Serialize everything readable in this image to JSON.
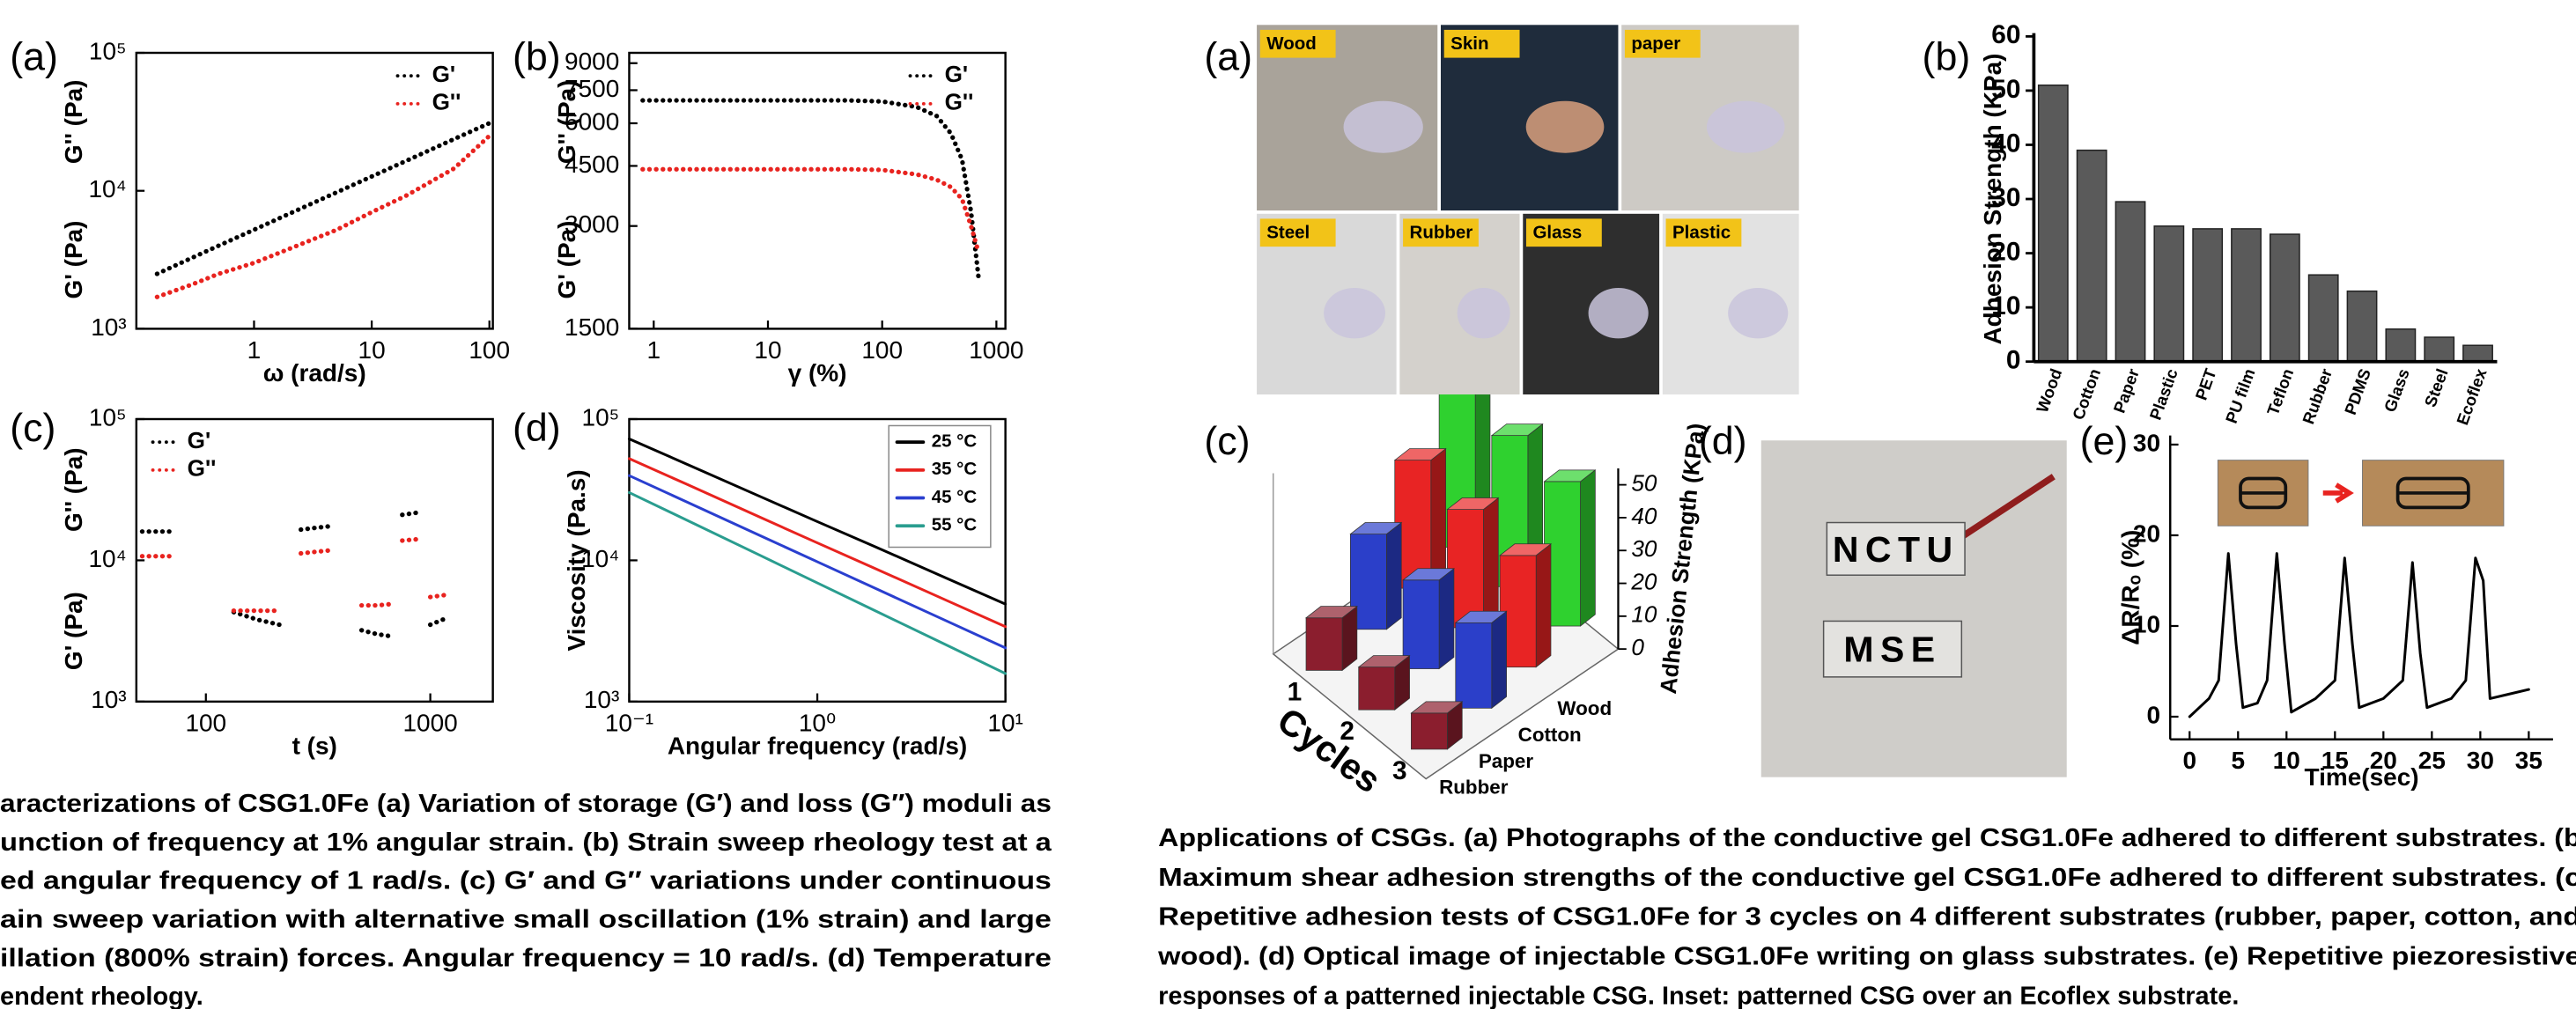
{
  "chart_data": [
    {
      "panel": "(a)",
      "type": "line",
      "xscale": "log",
      "yscale": "log",
      "frame": true,
      "legend": "upper right",
      "xlabel": "ω (rad/s)",
      "ylabel": [
        {
          "text": "G'' (Pa)",
          "color": "#e8231f"
        },
        {
          "text": "G' (Pa)",
          "color": "#000000"
        }
      ],
      "xlim": [
        0.1,
        107
      ],
      "ylim": [
        1000,
        100000
      ],
      "xticks": [
        1,
        10,
        100
      ],
      "yticks": [
        {
          "value": 1000,
          "label": "10³"
        },
        {
          "value": 10000,
          "label": "10⁴"
        },
        {
          "value": 100000,
          "label": "10⁵"
        }
      ],
      "x": [
        0.15,
        0.3,
        0.5,
        1,
        2,
        5,
        10,
        20,
        50,
        100
      ],
      "series": [
        {
          "name": "G'",
          "color": "#000000",
          "style": "dotted",
          "values": [
            2500,
            3280,
            4000,
            5220,
            6830,
            9720,
            12700,
            16600,
            23700,
            30900
          ]
        },
        {
          "name": "G''",
          "color": "#e8231f",
          "style": "dotted",
          "values": [
            1700,
            2100,
            2500,
            3000,
            3800,
            5200,
            7000,
            9300,
            14500,
            25000
          ]
        }
      ]
    },
    {
      "panel": "(b)",
      "type": "line",
      "xscale": "log",
      "yscale": "log",
      "frame": true,
      "legend": "upper right",
      "xlabel": "γ (%)",
      "ylabel": [
        {
          "text": "G'' (Pa)",
          "color": "#e8231f"
        },
        {
          "text": "G' (Pa)",
          "color": "#000000"
        }
      ],
      "xlim": [
        0.61,
        1200
      ],
      "ylim": [
        1500,
        9650
      ],
      "xticks": [
        1,
        10,
        100,
        1000
      ],
      "yticks": [
        1500,
        3000,
        4500,
        6000,
        7500,
        9000
      ],
      "x": [
        0.8,
        2,
        5,
        10,
        20,
        50,
        100,
        200,
        300,
        400,
        500,
        600,
        700
      ],
      "series": [
        {
          "name": "G'",
          "color": "#000000",
          "style": "dotted",
          "values": [
            7000,
            7000,
            7000,
            7000,
            7000,
            7000,
            6950,
            6700,
            6300,
            5600,
            4700,
            3300,
            2100
          ]
        },
        {
          "name": "G''",
          "color": "#e8231f",
          "style": "dotted",
          "values": [
            4400,
            4400,
            4400,
            4400,
            4400,
            4400,
            4380,
            4250,
            4100,
            3900,
            3600,
            3000,
            2500
          ]
        }
      ]
    },
    {
      "panel": "(c)",
      "type": "line",
      "xscale": "log",
      "yscale": "log",
      "frame": true,
      "legend": "upper left",
      "xlabel": "t (s)",
      "ylabel": [
        {
          "text": "G'' (Pa)",
          "color": "#e8231f"
        },
        {
          "text": "G' (Pa)",
          "color": "#000000"
        }
      ],
      "xlim": [
        49,
        1900
      ],
      "ylim": [
        1000,
        100000
      ],
      "xticks": [
        100,
        1000
      ],
      "yticks": [
        {
          "value": 1000,
          "label": "10³"
        },
        {
          "value": 10000,
          "label": "10⁴"
        },
        {
          "value": 100000,
          "label": "10⁵"
        }
      ],
      "x": [
        52,
        61,
        70,
        100,
        133,
        170,
        213,
        240,
        265,
        310,
        365,
        420,
        494,
        580,
        670,
        700,
        750,
        830,
        920,
        960,
        1000,
        1090,
        1180
      ],
      "series": [
        {
          "name": "G'",
          "color": "#000000",
          "style": "dotted",
          "values": [
            16000,
            16000,
            16000,
            null,
            4300,
            3800,
            3500,
            null,
            16500,
            17000,
            17500,
            null,
            3200,
            3000,
            2900,
            null,
            21000,
            21500,
            22000,
            null,
            3500,
            3700,
            3900
          ]
        },
        {
          "name": "G''",
          "color": "#e8231f",
          "style": "dotted",
          "values": [
            10700,
            10700,
            10700,
            null,
            4400,
            4400,
            4400,
            null,
            11200,
            11500,
            11800,
            null,
            4800,
            4800,
            4900,
            null,
            13800,
            14000,
            14200,
            null,
            5500,
            5600,
            5700
          ]
        }
      ]
    },
    {
      "panel": "(d)",
      "type": "line",
      "xscale": "log",
      "yscale": "log",
      "frame": true,
      "legend": "upper right",
      "legend_frame": true,
      "xlabel": "Angular frequency (rad/s)",
      "ylabel": "Viscosity (Pa.s)",
      "xlim": [
        0.1,
        10
      ],
      "ylim": [
        1000,
        100000
      ],
      "xticks": [
        {
          "value": 0.1,
          "label": "10⁻¹"
        },
        {
          "value": 1,
          "label": "10⁰"
        },
        {
          "value": 10,
          "label": "10¹"
        }
      ],
      "yticks": [
        {
          "value": 1000,
          "label": "10³"
        },
        {
          "value": 10000,
          "label": "10⁴"
        },
        {
          "value": 100000,
          "label": "10⁵"
        }
      ],
      "x": [
        0.1,
        0.2,
        0.5,
        1,
        2,
        5,
        10
      ],
      "series": [
        {
          "name": "25 °C",
          "color": "#000000",
          "style": "solid",
          "values": [
            72400,
            48300,
            28200,
            18800,
            12600,
            7350,
            4900
          ]
        },
        {
          "name": "35 °C",
          "color": "#e8231f",
          "style": "solid",
          "values": [
            52500,
            34800,
            20100,
            13300,
            8830,
            5120,
            3390
          ]
        },
        {
          "name": "45 °C",
          "color": "#2a3fcf",
          "style": "solid",
          "values": [
            39800,
            26100,
            14900,
            9770,
            6400,
            3660,
            2400
          ]
        },
        {
          "name": "55 °C",
          "color": "#2a9d8f",
          "style": "solid",
          "values": [
            30200,
            19400,
            10800,
            6920,
            4440,
            2470,
            1580
          ]
        }
      ]
    },
    {
      "panel": "(b)",
      "type": "bar",
      "frame": false,
      "ylabel": "Adhesion Strength (KPa)",
      "categories": [
        "Wood",
        "Cotton",
        "Paper",
        "Plastic",
        "PET",
        "PU film",
        "Teflon",
        "Rubber",
        "PDMS",
        "Glass",
        "Steel",
        "Ecoflex"
      ],
      "values": [
        51,
        39,
        29.5,
        25,
        24.5,
        24.5,
        23.5,
        16,
        13,
        6,
        4.5,
        3
      ],
      "color": "#5a5a5a",
      "ylim": [
        0,
        60
      ],
      "yticks": [
        0,
        10,
        20,
        30,
        40,
        50,
        60
      ]
    },
    {
      "panel": "(c)",
      "type": "bar3d",
      "xlabel": "Cycles",
      "ylabel": "Adhesion Strength (KPa)",
      "categories": [
        "1",
        "2",
        "3"
      ],
      "ylim": [
        0,
        55
      ],
      "yticks": [
        0,
        10,
        20,
        30,
        40,
        50
      ],
      "series": [
        {
          "name": "Rubber",
          "color": "#8b1e2e",
          "values": [
            16,
            13,
            11
          ]
        },
        {
          "name": "Paper",
          "color": "#2b3fc9",
          "values": [
            29,
            27,
            26
          ]
        },
        {
          "name": "Cotton",
          "color": "#e82424",
          "values": [
            39,
            36,
            34
          ]
        },
        {
          "name": "Wood",
          "color": "#2fd12f",
          "values": [
            48,
            46,
            44
          ]
        }
      ]
    },
    {
      "panel": "(e)",
      "type": "line",
      "xscale": "linear",
      "yscale": "linear",
      "frame": false,
      "xlabel": "Time(sec)",
      "ylabel": "ΔR/Rₒ (%)",
      "xlim": [
        -2,
        37.5
      ],
      "ylim": [
        -2.5,
        31
      ],
      "xticks": [
        0,
        5,
        10,
        15,
        20,
        25,
        30,
        35
      ],
      "yticks": [
        0,
        10,
        20,
        30
      ],
      "x": [
        0,
        1,
        2,
        3,
        4,
        4.8,
        5.5,
        7,
        8,
        9,
        9.8,
        10.5,
        13,
        15,
        16,
        16.8,
        17.5,
        20,
        22,
        23,
        23.8,
        24.5,
        27,
        28.5,
        29.5,
        30.3,
        31,
        33,
        35
      ],
      "series": [
        {
          "color": "#000000",
          "style": "solid",
          "values": [
            0,
            1,
            2,
            4,
            18,
            8,
            1,
            1.5,
            4,
            18,
            8,
            0.5,
            2,
            4,
            17.5,
            8,
            1,
            2,
            4,
            17,
            7,
            1,
            2,
            4,
            17.5,
            15,
            2,
            2.5,
            3
          ]
        }
      ]
    }
  ],
  "photos": {
    "panel": "(a)",
    "labels": [
      "Wood",
      "Skin",
      "paper",
      "Steel",
      "Rubber",
      "Glass",
      "Plastic"
    ]
  },
  "writing": {
    "panel": "(d)",
    "lines": [
      "NCTU",
      "MSE"
    ]
  },
  "captions": {
    "left": [
      "aracterizations of CSG1.0Fe (a) Variation of storage (G′) and loss (G″) moduli as",
      "unction of frequency at 1% angular strain. (b) Strain sweep rheology test at a",
      "ed angular frequency of 1 rad/s. (c) G′ and G″ variations under continuous",
      "ain sweep variation with alternative small oscillation (1% strain) and large",
      "illation (800% strain) forces. Angular frequency = 10 rad/s. (d)  Temperature",
      "endent rheology."
    ],
    "right": [
      "Applications of CSGs. (a) Photographs of the conductive gel CSG1.0Fe adhered to different substrates.  (b",
      "Maximum shear adhesion strengths of the conductive gel CSG1.0Fe adhered to different substrates. (c",
      "Repetitive adhesion tests of CSG1.0Fe for 3 cycles on 4 different substrates (rubber, paper, cotton, and",
      "wood). (d)  Optical image of injectable CSG1.0Fe writing on glass substrates. (e) Repetitive piezoresistive",
      "responses of a patterned injectable CSG. Inset: patterned CSG over an Ecoflex substrate."
    ]
  }
}
